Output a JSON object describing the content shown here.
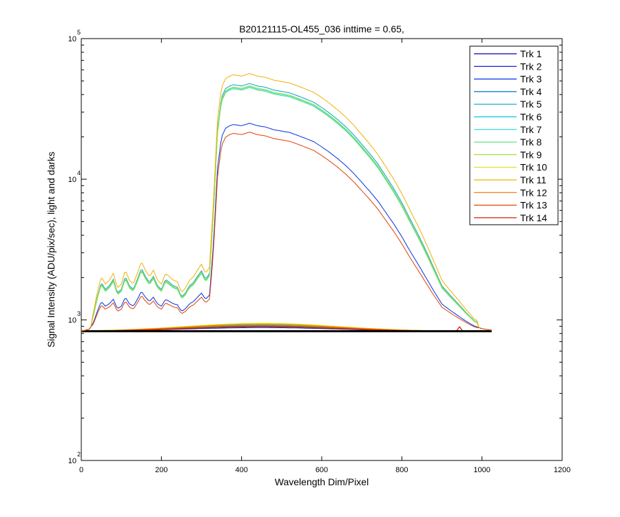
{
  "chart_data": {
    "type": "line",
    "title": "B20121115-OL455_036 inttime = 0.65,",
    "xlabel": "Wavelength Dim/Pixel",
    "ylabel": "Signal Intensity (ADU/pix/sec), light and darks",
    "xlim": [
      0,
      1200
    ],
    "ylim": [
      100,
      100000
    ],
    "y_scale": "log",
    "grid": false,
    "legend_position": "top-right",
    "x_ticks": [
      {
        "value": 0,
        "label": "0"
      },
      {
        "value": 200,
        "label": "200"
      },
      {
        "value": 400,
        "label": "400"
      },
      {
        "value": 600,
        "label": "600"
      },
      {
        "value": 800,
        "label": "800"
      },
      {
        "value": 1000,
        "label": "1000"
      },
      {
        "value": 1200,
        "label": "1200"
      }
    ],
    "y_ticks": [
      {
        "value": 100,
        "base": "10",
        "exp": "2"
      },
      {
        "value": 1000,
        "base": "10",
        "exp": "3"
      },
      {
        "value": 10000,
        "base": "10",
        "exp": "4"
      },
      {
        "value": 100000,
        "base": "10",
        "exp": "5"
      }
    ],
    "series": [
      {
        "name": "Trk 1",
        "color": "#0000a0",
        "light": false,
        "scale": 1.0,
        "dark": 900
      },
      {
        "name": "Trk 2",
        "color": "#0000d0",
        "light": false,
        "scale": 1.0,
        "dark": 905
      },
      {
        "name": "Trk 3",
        "color": "#0030e0",
        "light": true,
        "scale": 1.0,
        "dark": 880
      },
      {
        "name": "Trk 4",
        "color": "#0070c0",
        "light": false,
        "scale": 1.0,
        "dark": 895
      },
      {
        "name": "Trk 5",
        "color": "#00a0d0",
        "light": true,
        "scale": 1.95,
        "dark": 910
      },
      {
        "name": "Trk 6",
        "color": "#00c8e0",
        "light": false,
        "scale": 1.0,
        "dark": 915
      },
      {
        "name": "Trk 7",
        "color": "#20d8c8",
        "light": true,
        "scale": 1.85,
        "dark": 920
      },
      {
        "name": "Trk 8",
        "color": "#60e080",
        "light": true,
        "scale": 1.82,
        "dark": 930
      },
      {
        "name": "Trk 9",
        "color": "#a0e040",
        "light": true,
        "scale": 1.88,
        "dark": 940
      },
      {
        "name": "Trk 10",
        "color": "#e0e000",
        "light": false,
        "scale": 1.0,
        "dark": 945
      },
      {
        "name": "Trk 11",
        "color": "#f0b000",
        "light": true,
        "scale": 2.3,
        "dark": 935
      },
      {
        "name": "Trk 12",
        "color": "#f07000",
        "light": false,
        "scale": 1.0,
        "dark": 925
      },
      {
        "name": "Trk 13",
        "color": "#e04000",
        "light": true,
        "scale": 0.86,
        "dark": 905
      },
      {
        "name": "Trk 14",
        "color": "#d02000",
        "light": false,
        "scale": 1.0,
        "dark": 890
      }
    ],
    "base_profile": [
      [
        0,
        830
      ],
      [
        20,
        860
      ],
      [
        30,
        950
      ],
      [
        40,
        1150
      ],
      [
        50,
        1350
      ],
      [
        60,
        1250
      ],
      [
        70,
        1300
      ],
      [
        80,
        1400
      ],
      [
        90,
        1200
      ],
      [
        100,
        1250
      ],
      [
        110,
        1450
      ],
      [
        120,
        1300
      ],
      [
        130,
        1250
      ],
      [
        140,
        1400
      ],
      [
        150,
        1600
      ],
      [
        160,
        1450
      ],
      [
        170,
        1350
      ],
      [
        180,
        1450
      ],
      [
        190,
        1300
      ],
      [
        200,
        1250
      ],
      [
        210,
        1400
      ],
      [
        220,
        1350
      ],
      [
        230,
        1300
      ],
      [
        240,
        1280
      ],
      [
        250,
        1150
      ],
      [
        260,
        1200
      ],
      [
        270,
        1300
      ],
      [
        280,
        1350
      ],
      [
        290,
        1450
      ],
      [
        300,
        1550
      ],
      [
        310,
        1400
      ],
      [
        320,
        1500
      ],
      [
        330,
        3500
      ],
      [
        340,
        12000
      ],
      [
        350,
        20000
      ],
      [
        360,
        23000
      ],
      [
        370,
        24000
      ],
      [
        380,
        24500
      ],
      [
        400,
        24000
      ],
      [
        420,
        25000
      ],
      [
        440,
        24000
      ],
      [
        460,
        23500
      ],
      [
        480,
        22500
      ],
      [
        500,
        22000
      ],
      [
        520,
        21500
      ],
      [
        540,
        20500
      ],
      [
        560,
        19500
      ],
      [
        580,
        18500
      ],
      [
        600,
        17000
      ],
      [
        620,
        15500
      ],
      [
        640,
        14000
      ],
      [
        660,
        12500
      ],
      [
        680,
        11000
      ],
      [
        700,
        9500
      ],
      [
        720,
        8200
      ],
      [
        740,
        7000
      ],
      [
        760,
        5800
      ],
      [
        780,
        4800
      ],
      [
        800,
        3900
      ],
      [
        820,
        3100
      ],
      [
        840,
        2500
      ],
      [
        860,
        2000
      ],
      [
        880,
        1600
      ],
      [
        900,
        1300
      ],
      [
        920,
        1180
      ],
      [
        940,
        1080
      ],
      [
        960,
        990
      ],
      [
        980,
        920
      ],
      [
        1000,
        880
      ],
      [
        1020,
        865
      ]
    ]
  }
}
